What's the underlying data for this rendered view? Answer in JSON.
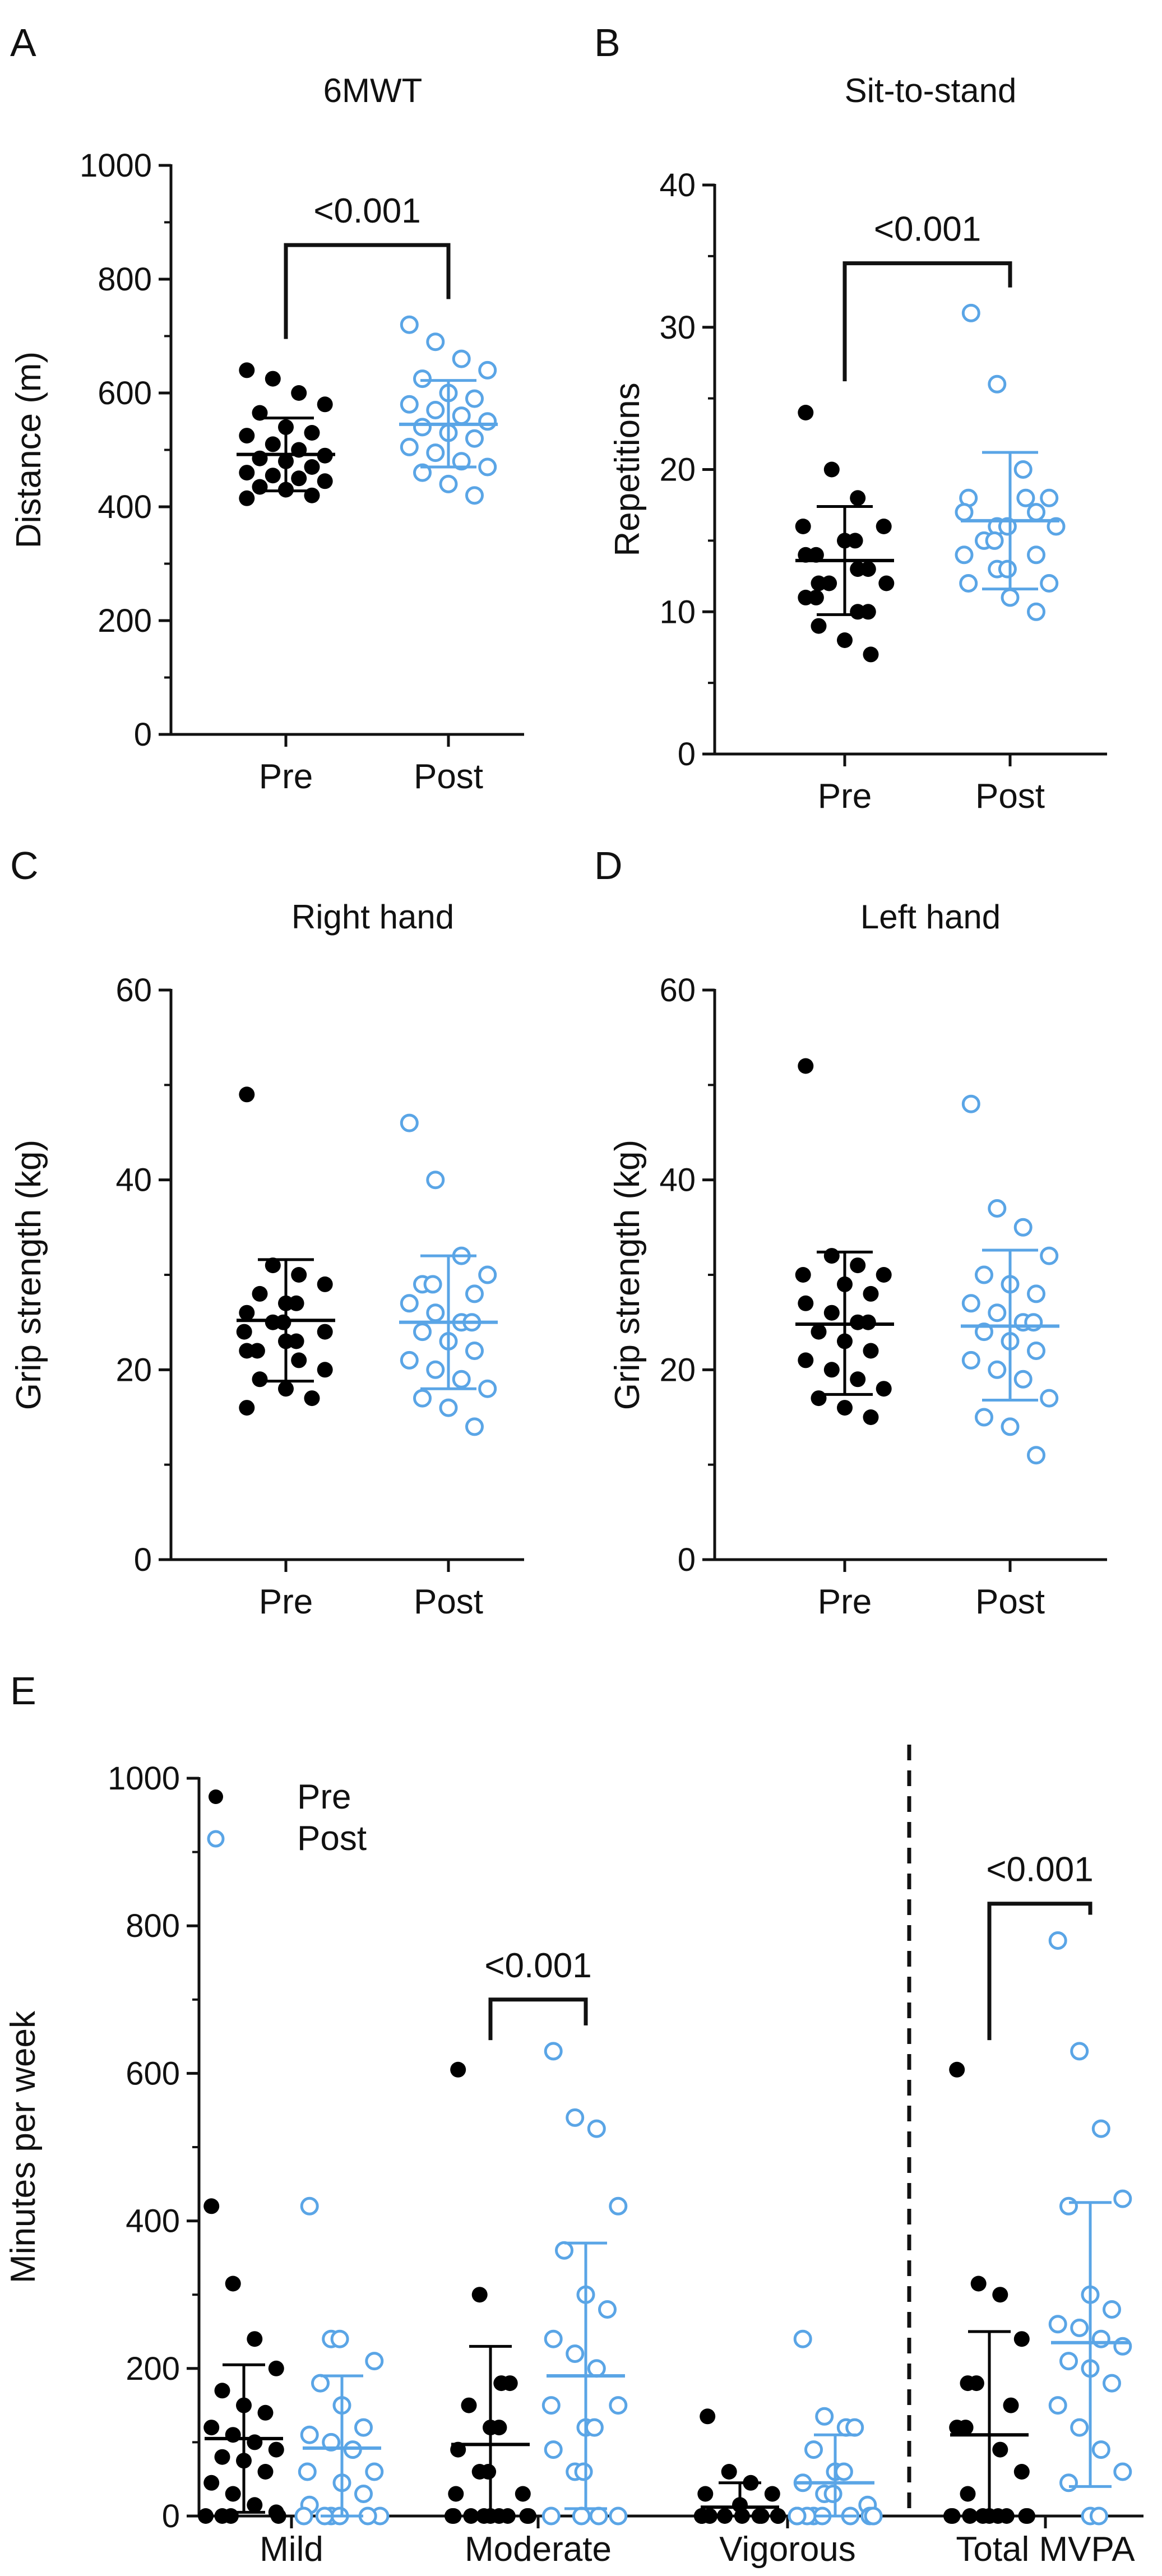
{
  "colors": {
    "pre": "#000000",
    "post": "#5aa5e6",
    "axis": "#111111"
  },
  "legend": {
    "pre_label": "Pre",
    "post_label": "Post"
  },
  "chart_data": [
    {
      "panel": "A",
      "type": "scatter",
      "title": "6MWT",
      "ylabel": "Distance (m)",
      "ylim": [
        0,
        1000
      ],
      "yticks": [
        0,
        200,
        400,
        600,
        800,
        1000
      ],
      "categories": [
        "Pre",
        "Post"
      ],
      "series": [
        {
          "name": "Pre",
          "style": "filled",
          "mean": 492,
          "sd_low": 428,
          "sd_high": 556,
          "values": [
            640,
            625,
            600,
            580,
            565,
            540,
            530,
            525,
            510,
            500,
            490,
            485,
            480,
            470,
            460,
            455,
            450,
            445,
            435,
            430,
            420,
            415
          ]
        },
        {
          "name": "Post",
          "style": "open",
          "mean": 545,
          "sd_low": 470,
          "sd_high": 622,
          "values": [
            720,
            690,
            660,
            640,
            625,
            600,
            590,
            580,
            570,
            560,
            550,
            540,
            530,
            520,
            505,
            495,
            480,
            470,
            460,
            440,
            420
          ]
        }
      ],
      "comparisons": [
        {
          "from": "Pre",
          "to": "Post",
          "label": "<0.001",
          "y": 860
        }
      ]
    },
    {
      "panel": "B",
      "type": "scatter",
      "title": "Sit-to-stand",
      "ylabel": "Repetitions",
      "ylim": [
        0,
        40
      ],
      "yticks": [
        0,
        10,
        20,
        30,
        40
      ],
      "categories": [
        "Pre",
        "Post"
      ],
      "series": [
        {
          "name": "Pre",
          "style": "filled",
          "mean": 13.6,
          "sd_low": 9.8,
          "sd_high": 17.4,
          "values": [
            24,
            20,
            18,
            16,
            16,
            15,
            15,
            14,
            14,
            13,
            13,
            12,
            12,
            12,
            11,
            11,
            10,
            10,
            9,
            8,
            7
          ]
        },
        {
          "name": "Post",
          "style": "open",
          "mean": 16.4,
          "sd_low": 11.6,
          "sd_high": 21.2,
          "values": [
            31,
            26,
            20,
            18,
            18,
            18,
            17,
            17,
            16,
            16,
            16,
            15,
            15,
            14,
            14,
            13,
            13,
            12,
            12,
            11,
            10
          ]
        }
      ],
      "comparisons": [
        {
          "from": "Pre",
          "to": "Post",
          "label": "<0.001",
          "y": 34.5
        }
      ]
    },
    {
      "panel": "C",
      "type": "scatter",
      "title": "Right hand",
      "ylabel": "Grip strength (kg)",
      "ylim": [
        0,
        60
      ],
      "yticks": [
        0,
        20,
        40,
        60
      ],
      "categories": [
        "Pre",
        "Post"
      ],
      "series": [
        {
          "name": "Pre",
          "style": "filled",
          "mean": 25.2,
          "sd_low": 18.8,
          "sd_high": 31.6,
          "values": [
            49,
            31,
            30,
            29,
            28,
            27,
            27,
            26,
            25,
            25,
            24,
            24,
            23,
            23,
            22,
            22,
            21,
            20,
            19,
            18,
            17,
            16
          ]
        },
        {
          "name": "Post",
          "style": "open",
          "mean": 25.0,
          "sd_low": 18.0,
          "sd_high": 32.0,
          "values": [
            46,
            40,
            32,
            30,
            29,
            29,
            28,
            27,
            26,
            25,
            25,
            24,
            23,
            22,
            21,
            20,
            19,
            18,
            17,
            16,
            14
          ]
        }
      ],
      "comparisons": []
    },
    {
      "panel": "D",
      "type": "scatter",
      "title": "Left hand",
      "ylabel": "Grip strength (kg)",
      "ylim": [
        0,
        60
      ],
      "yticks": [
        0,
        20,
        40,
        60
      ],
      "categories": [
        "Pre",
        "Post"
      ],
      "series": [
        {
          "name": "Pre",
          "style": "filled",
          "mean": 24.8,
          "sd_low": 17.4,
          "sd_high": 32.4,
          "values": [
            52,
            32,
            31,
            30,
            30,
            29,
            28,
            27,
            26,
            25,
            25,
            24,
            23,
            22,
            21,
            20,
            19,
            18,
            17,
            16,
            15
          ]
        },
        {
          "name": "Post",
          "style": "open",
          "mean": 24.6,
          "sd_low": 16.8,
          "sd_high": 32.6,
          "values": [
            48,
            37,
            35,
            32,
            30,
            29,
            28,
            27,
            26,
            25,
            25,
            24,
            23,
            22,
            21,
            20,
            19,
            17,
            15,
            14,
            11
          ]
        }
      ],
      "comparisons": []
    },
    {
      "panel": "E",
      "type": "scatter",
      "title": "",
      "ylabel": "Minutes per week",
      "ylim": [
        0,
        1000
      ],
      "yticks": [
        0,
        200,
        400,
        600,
        800,
        1000
      ],
      "categories": [
        "Mild",
        "Moderate",
        "Vigorous",
        "Total MVPA"
      ],
      "divider_after": "Vigorous",
      "legend_position": "top-left",
      "groups": [
        {
          "category": "Mild",
          "pre": {
            "mean": 105,
            "sd_low": 5,
            "sd_high": 205,
            "values": [
              420,
              315,
              240,
              200,
              170,
              150,
              140,
              120,
              110,
              100,
              90,
              80,
              75,
              60,
              45,
              30,
              15,
              5,
              0,
              0,
              0,
              0
            ]
          },
          "post": {
            "mean": 92,
            "sd_low": 0,
            "sd_high": 190,
            "values": [
              420,
              240,
              240,
              210,
              180,
              150,
              120,
              110,
              100,
              90,
              60,
              60,
              45,
              30,
              15,
              0,
              0,
              0,
              0,
              0,
              0
            ]
          }
        },
        {
          "category": "Moderate",
          "pre": {
            "mean": 97,
            "sd_low": 0,
            "sd_high": 230,
            "values": [
              605,
              300,
              180,
              180,
              150,
              120,
              120,
              90,
              60,
              60,
              30,
              30,
              0,
              0,
              0,
              0,
              0,
              0,
              0,
              0,
              0
            ]
          },
          "post": {
            "mean": 190,
            "sd_low": 10,
            "sd_high": 370,
            "values": [
              630,
              540,
              525,
              420,
              360,
              300,
              280,
              240,
              220,
              200,
              150,
              150,
              120,
              120,
              90,
              60,
              60,
              0,
              0,
              0,
              0
            ]
          }
        },
        {
          "category": "Vigorous",
          "pre": {
            "mean": 12,
            "sd_low": 0,
            "sd_high": 45,
            "values": [
              135,
              60,
              45,
              30,
              30,
              15,
              0,
              0,
              0,
              0,
              0,
              0,
              0,
              0,
              0,
              0,
              0,
              0,
              0,
              0,
              0
            ]
          },
          "post": {
            "mean": 45,
            "sd_low": 0,
            "sd_high": 110,
            "values": [
              240,
              135,
              120,
              120,
              90,
              60,
              60,
              45,
              30,
              30,
              15,
              0,
              0,
              0,
              0,
              0,
              0,
              0,
              0,
              0,
              0
            ]
          }
        },
        {
          "category": "Total MVPA",
          "pre": {
            "mean": 110,
            "sd_low": 0,
            "sd_high": 250,
            "values": [
              605,
              315,
              300,
              240,
              180,
              180,
              150,
              120,
              120,
              90,
              60,
              30,
              0,
              0,
              0,
              0,
              0,
              0,
              0,
              0,
              0
            ]
          },
          "post": {
            "mean": 235,
            "sd_low": 40,
            "sd_high": 425,
            "values": [
              780,
              630,
              525,
              430,
              420,
              300,
              280,
              260,
              255,
              240,
              230,
              210,
              200,
              180,
              150,
              120,
              90,
              60,
              45,
              0,
              0
            ]
          }
        }
      ],
      "comparisons": [
        {
          "category": "Moderate",
          "label": "<0.001",
          "y": 700
        },
        {
          "category": "Total MVPA",
          "label": "<0.001",
          "y": 830
        }
      ]
    }
  ]
}
